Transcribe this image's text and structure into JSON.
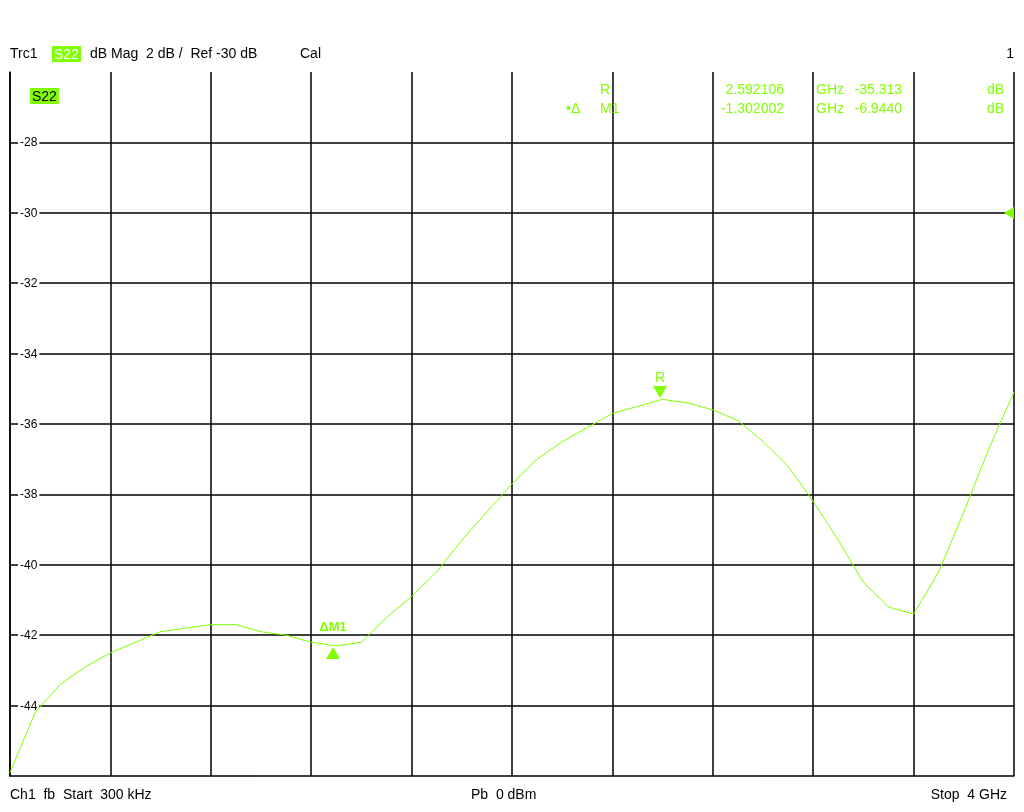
{
  "chart_data": {
    "type": "line",
    "categories": [
      null,
      null,
      null,
      null,
      null,
      null,
      null,
      null,
      null,
      null,
      null,
      null,
      null,
      null,
      null,
      null,
      null,
      null,
      null,
      null,
      null,
      null,
      null,
      null,
      null,
      null,
      null,
      null,
      null,
      null,
      null,
      null,
      null,
      null,
      null,
      null,
      null,
      null,
      null,
      null,
      null
    ],
    "series": [
      {
        "name": "S22",
        "color": "#80ff00",
        "values": [
          -45.9,
          -44.2,
          -43.4,
          -42.9,
          -42.5,
          -42.2,
          -41.9,
          -41.8,
          -41.7,
          -41.7,
          -41.9,
          -42.0,
          -42.2,
          -42.3,
          -42.2,
          -41.5,
          -40.9,
          -40.2,
          -39.3,
          -38.5,
          -37.7,
          -37.0,
          -36.5,
          -36.1,
          -35.7,
          -35.5,
          -35.3,
          -35.4,
          -35.6,
          -35.9,
          -36.5,
          -37.2,
          -38.2,
          -39.3,
          -40.5,
          -41.2,
          -41.4,
          -40.2,
          -38.5,
          -36.7,
          -35.1
        ]
      }
    ],
    "ylim": [
      -46,
      -26
    ],
    "yticks": [
      -28,
      -30,
      -32,
      -34,
      -36,
      -38,
      -40,
      -42,
      -44
    ],
    "tick_labels": "y",
    "grid": true,
    "marker": "none",
    "line_style": "solid",
    "annotations": [
      {
        "text": "R",
        "y": -35.313
      },
      {
        "text": "ΔM1",
        "y": -42.257
      },
      "Trc1",
      "S22",
      "dB Mag  2 dB /  Ref -30 dB",
      "Cal",
      "1",
      "R",
      "2.592106",
      "GHz",
      "-35.313",
      "dB",
      "•Δ",
      "M1",
      "-1.302002",
      "GHz",
      "-6.9440",
      "dB",
      "Ch1  fb  Start  300 kHz",
      "Pb  0 dBm",
      "Stop  4 GHz"
    ]
  }
}
